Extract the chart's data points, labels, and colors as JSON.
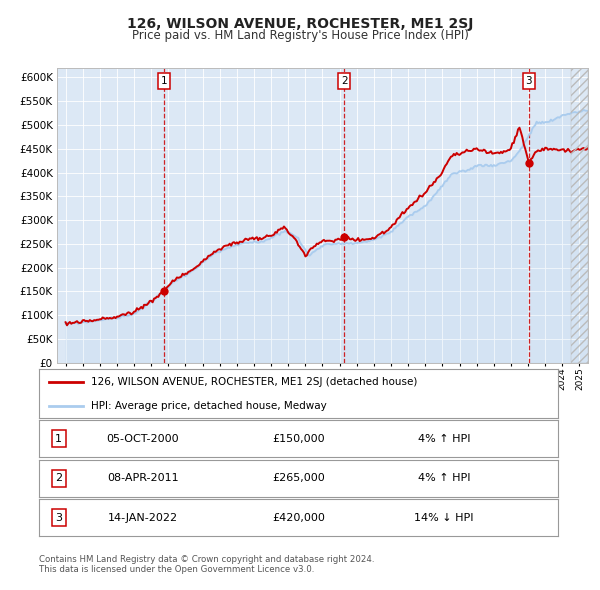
{
  "title": "126, WILSON AVENUE, ROCHESTER, ME1 2SJ",
  "subtitle": "Price paid vs. HM Land Registry's House Price Index (HPI)",
  "legend_line1": "126, WILSON AVENUE, ROCHESTER, ME1 2SJ (detached house)",
  "legend_line2": "HPI: Average price, detached house, Medway",
  "footer1": "Contains HM Land Registry data © Crown copyright and database right 2024.",
  "footer2": "This data is licensed under the Open Government Licence v3.0.",
  "sales": [
    {
      "num": 1,
      "date": "05-OCT-2000",
      "price": 150000,
      "pct": "4%",
      "dir": "↑",
      "x_year": 2000.76
    },
    {
      "num": 2,
      "date": "08-APR-2011",
      "price": 265000,
      "pct": "4%",
      "dir": "↑",
      "x_year": 2011.27
    },
    {
      "num": 3,
      "date": "14-JAN-2022",
      "price": 420000,
      "pct": "14%",
      "dir": "↓",
      "x_year": 2022.04
    }
  ],
  "hpi_color": "#aaccee",
  "price_color": "#cc0000",
  "bg_color": "#dce8f5",
  "ylim": [
    0,
    620000
  ],
  "xlim_start": 1994.5,
  "xlim_end": 2025.5,
  "yticks": [
    0,
    50000,
    100000,
    150000,
    200000,
    250000,
    300000,
    350000,
    400000,
    450000,
    500000,
    550000,
    600000
  ],
  "hpi_anchors_x": [
    1995.0,
    1996.0,
    1997.0,
    1998.0,
    1999.0,
    2000.0,
    2001.0,
    2001.5,
    2002.5,
    2003.5,
    2004.5,
    2005.5,
    2006.5,
    2007.0,
    2007.8,
    2008.5,
    2009.2,
    2010.0,
    2011.0,
    2011.5,
    2012.0,
    2013.0,
    2014.0,
    2015.0,
    2015.5,
    2016.0,
    2017.0,
    2017.5,
    2018.0,
    2018.5,
    2019.0,
    2019.5,
    2020.0,
    2020.5,
    2021.0,
    2021.5,
    2022.0,
    2022.5,
    2023.0,
    2023.5,
    2024.0,
    2024.5,
    2025.3
  ],
  "hpi_anchors_y": [
    82000,
    85000,
    90000,
    95000,
    103000,
    128000,
    160000,
    175000,
    195000,
    225000,
    242000,
    252000,
    255000,
    263000,
    278000,
    265000,
    225000,
    248000,
    252000,
    250000,
    252000,
    258000,
    275000,
    308000,
    318000,
    330000,
    372000,
    395000,
    400000,
    405000,
    415000,
    415000,
    415000,
    420000,
    425000,
    445000,
    475000,
    505000,
    505000,
    510000,
    520000,
    525000,
    530000
  ],
  "price_anchors_x": [
    1995.0,
    1996.0,
    1997.0,
    1998.0,
    1999.0,
    2000.0,
    2000.76,
    2001.0,
    2001.5,
    2002.5,
    2003.5,
    2004.5,
    2005.5,
    2006.5,
    2007.0,
    2007.8,
    2008.5,
    2009.0,
    2009.5,
    2010.0,
    2011.0,
    2011.27,
    2012.0,
    2013.0,
    2014.0,
    2015.0,
    2015.5,
    2016.0,
    2017.0,
    2017.5,
    2018.0,
    2018.5,
    2019.0,
    2019.5,
    2020.0,
    2020.5,
    2021.0,
    2021.5,
    2022.04,
    2022.5,
    2023.0,
    2023.5,
    2024.0,
    2024.5,
    2025.3
  ],
  "price_anchors_y": [
    83000,
    86000,
    91000,
    97000,
    107000,
    130000,
    150000,
    162000,
    178000,
    198000,
    228000,
    248000,
    258000,
    262000,
    268000,
    285000,
    255000,
    225000,
    245000,
    255000,
    260000,
    265000,
    258000,
    262000,
    285000,
    325000,
    340000,
    358000,
    400000,
    435000,
    440000,
    445000,
    448000,
    445000,
    440000,
    442000,
    450000,
    498000,
    420000,
    445000,
    450000,
    450000,
    448000,
    445000,
    448000
  ]
}
